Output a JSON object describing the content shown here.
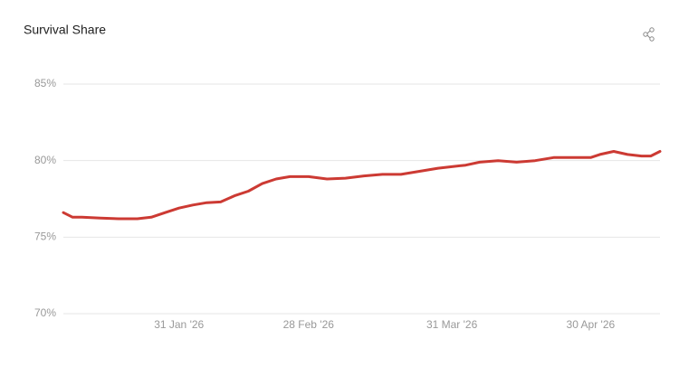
{
  "chart_data": {
    "type": "line",
    "title": "Survival Share",
    "x": [
      "2026-01-06",
      "2026-01-08",
      "2026-01-10",
      "2026-01-14",
      "2026-01-18",
      "2026-01-22",
      "2026-01-25",
      "2026-01-28",
      "2026-01-31",
      "2026-02-03",
      "2026-02-06",
      "2026-02-09",
      "2026-02-12",
      "2026-02-15",
      "2026-02-18",
      "2026-02-21",
      "2026-02-24",
      "2026-02-28",
      "2026-03-04",
      "2026-03-08",
      "2026-03-12",
      "2026-03-16",
      "2026-03-20",
      "2026-03-24",
      "2026-03-28",
      "2026-03-31",
      "2026-04-03",
      "2026-04-06",
      "2026-04-10",
      "2026-04-14",
      "2026-04-18",
      "2026-04-22",
      "2026-04-26",
      "2026-04-30",
      "2026-05-02",
      "2026-05-05",
      "2026-05-08",
      "2026-05-11",
      "2026-05-13",
      "2026-05-15"
    ],
    "series": [
      {
        "name": "Survival Share",
        "color": "#cc3a33",
        "values": [
          76.6,
          76.3,
          76.3,
          76.25,
          76.2,
          76.2,
          76.3,
          76.6,
          76.9,
          77.1,
          77.25,
          77.3,
          77.7,
          78.0,
          78.5,
          78.8,
          78.95,
          78.95,
          78.8,
          78.85,
          79.0,
          79.1,
          79.1,
          79.3,
          79.5,
          79.6,
          79.7,
          79.9,
          80.0,
          79.9,
          80.0,
          80.2,
          80.2,
          80.2,
          80.4,
          80.6,
          80.4,
          80.3,
          80.3,
          80.6
        ]
      }
    ],
    "xlim": [
      "2026-01-06",
      "2026-05-15"
    ],
    "xticks": [
      {
        "value": "2026-01-31",
        "label": "31 Jan '26"
      },
      {
        "value": "2026-02-28",
        "label": "28 Feb '26"
      },
      {
        "value": "2026-03-31",
        "label": "31 Mar '26"
      },
      {
        "value": "2026-04-30",
        "label": "30 Apr '26"
      }
    ],
    "ylim": [
      70,
      85
    ],
    "yticks": [
      {
        "value": 70,
        "label": "70%"
      },
      {
        "value": 75,
        "label": "75%"
      },
      {
        "value": 80,
        "label": "80%"
      },
      {
        "value": 85,
        "label": "85%"
      }
    ],
    "grid": true
  }
}
